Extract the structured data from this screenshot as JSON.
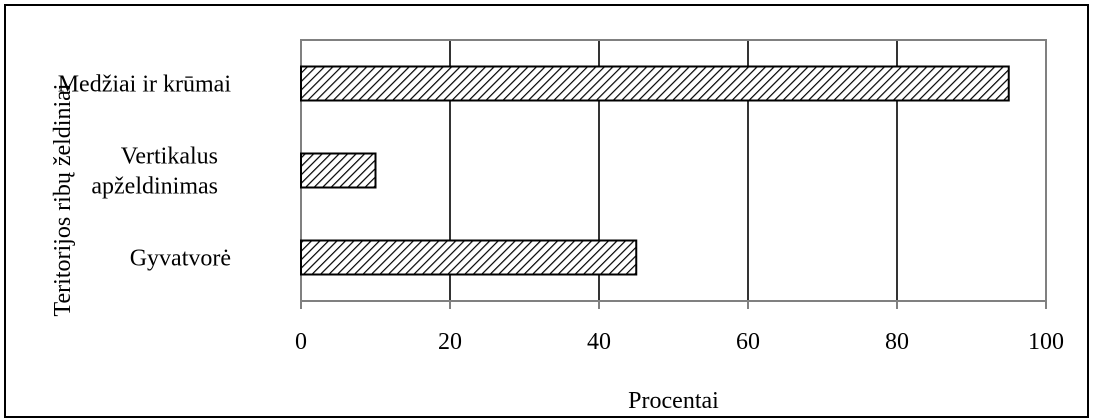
{
  "chart_data": {
    "type": "bar",
    "orientation": "horizontal",
    "categories": [
      [
        "Medžiai ir krūmai"
      ],
      [
        "Vertikalus",
        "apželdinimas"
      ],
      [
        "Gyvatvorė"
      ]
    ],
    "values": [
      95,
      10,
      45
    ],
    "title": "",
    "xlabel": "Procentai",
    "ylabel": "Teritorijos ribų želdiniai",
    "xlim": [
      0,
      100
    ],
    "xticks": [
      "0",
      "20",
      "40",
      "60",
      "80",
      "100"
    ],
    "grid": "vertical",
    "bar_fill": "diagonal-hatch",
    "colors": {
      "bar_stroke": "#000000",
      "hatch": "#000000",
      "axes": "#808080",
      "grid": "#000000"
    }
  }
}
